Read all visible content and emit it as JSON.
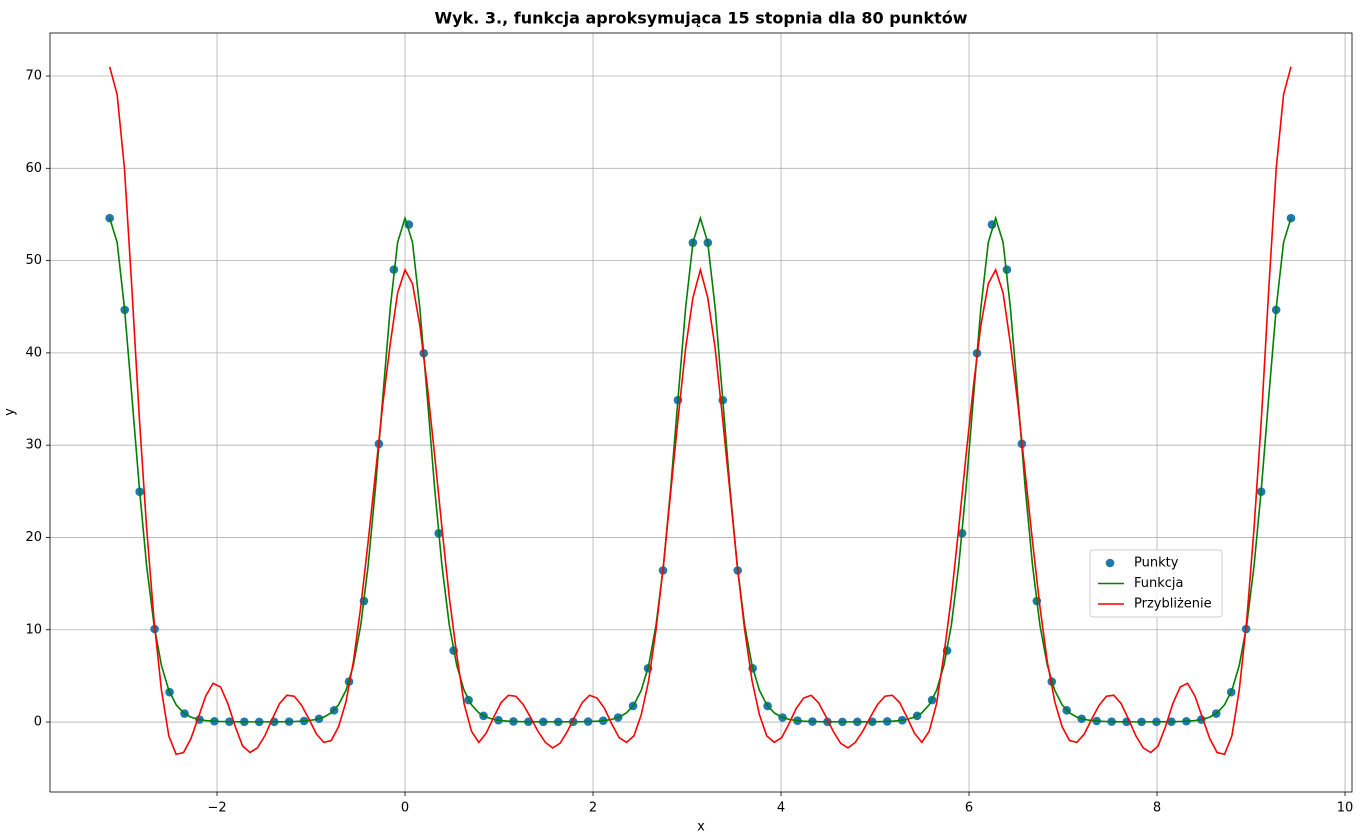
{
  "chart_data": {
    "type": "line",
    "title": "Wyk. 3., funkcja aproksymująca 15 stopnia dla 80 punktów",
    "x_label": "x",
    "y_label": "y",
    "xlim": [
      -3.777,
      10.074
    ],
    "ylim": [
      -7.58,
      74.66
    ],
    "xticks": [
      {
        "value": -2,
        "label": "−2"
      },
      0,
      2,
      4,
      6,
      8,
      10
    ],
    "yticks": [
      0,
      10,
      20,
      30,
      40,
      50,
      60,
      70
    ],
    "grid": true,
    "x": [
      -3.142,
      -3.063,
      -2.985,
      -2.906,
      -2.827,
      -2.749,
      -2.67,
      -2.592,
      -2.513,
      -2.435,
      -2.356,
      -2.278,
      -2.199,
      -2.121,
      -2.042,
      -1.963,
      -1.885,
      -1.806,
      -1.728,
      -1.649,
      -1.571,
      -1.492,
      -1.414,
      -1.335,
      -1.257,
      -1.178,
      -1.1,
      -1.021,
      -0.942,
      -0.864,
      -0.785,
      -0.707,
      -0.628,
      -0.55,
      -0.471,
      -0.393,
      -0.314,
      -0.236,
      -0.157,
      -0.079,
      0,
      0.079,
      0.157,
      0.236,
      0.314,
      0.393,
      0.471,
      0.55,
      0.628,
      0.707,
      0.785,
      0.864,
      0.942,
      1.021,
      1.1,
      1.178,
      1.257,
      1.335,
      1.414,
      1.492,
      1.571,
      1.649,
      1.728,
      1.806,
      1.885,
      1.963,
      2.042,
      2.121,
      2.199,
      2.278,
      2.356,
      2.435,
      2.513,
      2.592,
      2.67,
      2.749,
      2.827,
      2.906,
      2.985,
      3.063,
      3.142,
      3.22,
      3.299,
      3.377,
      3.456,
      3.534,
      3.613,
      3.691,
      3.77,
      3.848,
      3.927,
      4.006,
      4.084,
      4.163,
      4.241,
      4.32,
      4.398,
      4.477,
      4.555,
      4.634,
      4.712,
      4.791,
      4.869,
      4.948,
      5.027,
      5.105,
      5.184,
      5.262,
      5.341,
      5.419,
      5.498,
      5.576,
      5.655,
      5.733,
      5.812,
      5.89,
      5.969,
      6.048,
      6.126,
      6.205,
      6.283,
      6.362,
      6.44,
      6.519,
      6.597,
      6.676,
      6.754,
      6.833,
      6.912,
      6.99,
      7.069,
      7.147,
      7.226,
      7.304,
      7.383,
      7.461,
      7.54,
      7.618,
      7.697,
      7.775,
      7.854,
      7.933,
      8.011,
      8.09,
      8.168,
      8.247,
      8.325,
      8.404,
      8.482,
      8.561,
      8.639,
      8.718,
      8.796,
      8.875,
      8.954,
      9.032,
      9.111,
      9.189,
      9.268,
      9.346,
      9.425
    ],
    "series": [
      {
        "name": "Punkty",
        "type": "scatter",
        "color": "#1f77b4",
        "x": [
          -3.142,
          -2.982,
          -2.823,
          -2.664,
          -2.505,
          -2.346,
          -2.187,
          -2.028,
          -1.869,
          -1.71,
          -1.551,
          -1.392,
          -1.233,
          -1.074,
          -0.915,
          -0.755,
          -0.596,
          -0.437,
          -0.278,
          -0.119,
          0.04,
          0.199,
          0.358,
          0.517,
          0.676,
          0.835,
          0.994,
          1.153,
          1.312,
          1.471,
          1.63,
          1.789,
          1.948,
          2.108,
          2.267,
          2.426,
          2.585,
          2.744,
          2.903,
          3.062,
          3.221,
          3.38,
          3.539,
          3.698,
          3.857,
          4.016,
          4.175,
          4.334,
          4.494,
          4.653,
          4.812,
          4.971,
          5.13,
          5.289,
          5.448,
          5.607,
          5.766,
          5.926,
          6.085,
          6.244,
          6.403,
          6.562,
          6.721,
          6.88,
          7.039,
          7.198,
          7.358,
          7.517,
          7.676,
          7.835,
          7.994,
          8.153,
          8.312,
          8.471,
          8.63,
          8.789,
          8.948,
          9.108,
          9.267,
          9.425
        ],
        "values": [
          54.6,
          44.66,
          24.96,
          10.08,
          3.24,
          0.92,
          0.27,
          0.087,
          0.037,
          0.021,
          0.018,
          0.024,
          0.044,
          0.112,
          0.358,
          1.27,
          4.38,
          13.11,
          30.15,
          49.02,
          53.9,
          39.96,
          20.45,
          7.74,
          2.38,
          0.67,
          0.197,
          0.068,
          0.031,
          0.02,
          0.019,
          0.026,
          0.054,
          0.146,
          0.49,
          1.74,
          5.82,
          16.42,
          34.88,
          51.94,
          51.94,
          34.88,
          16.42,
          5.82,
          1.74,
          0.49,
          0.146,
          0.054,
          0.026,
          0.019,
          0.02,
          0.031,
          0.068,
          0.197,
          0.67,
          2.38,
          7.74,
          20.45,
          39.96,
          53.9,
          49.02,
          30.15,
          13.11,
          4.38,
          1.27,
          0.358,
          0.112,
          0.044,
          0.024,
          0.018,
          0.021,
          0.037,
          0.087,
          0.27,
          0.92,
          3.24,
          10.08,
          24.96,
          44.66,
          54.6
        ]
      },
      {
        "name": "Funkcja",
        "type": "line",
        "color": "#008000",
        "values": [
          54.6,
          51.98,
          44.88,
          35.3,
          25.44,
          16.92,
          10.5,
          6.15,
          3.44,
          1.87,
          1.0,
          0.535,
          0.291,
          0.163,
          0.095,
          0.059,
          0.039,
          0.028,
          0.022,
          0.019,
          0.018,
          0.019,
          0.022,
          0.028,
          0.039,
          0.059,
          0.095,
          0.163,
          0.291,
          0.535,
          1.0,
          1.87,
          3.44,
          6.15,
          10.5,
          16.92,
          25.44,
          35.3,
          44.88,
          51.98,
          54.6,
          51.98,
          44.88,
          35.3,
          25.44,
          16.92,
          10.5,
          6.15,
          3.44,
          1.87,
          1.0,
          0.535,
          0.291,
          0.163,
          0.095,
          0.059,
          0.039,
          0.028,
          0.022,
          0.019,
          0.018,
          0.019,
          0.022,
          0.028,
          0.039,
          0.059,
          0.095,
          0.163,
          0.291,
          0.535,
          1.0,
          1.87,
          3.44,
          6.15,
          10.5,
          16.92,
          25.44,
          35.3,
          44.88,
          51.98,
          54.6,
          51.98,
          44.88,
          35.3,
          25.44,
          16.92,
          10.5,
          6.15,
          3.44,
          1.87,
          1.0,
          0.535,
          0.291,
          0.163,
          0.095,
          0.059,
          0.039,
          0.028,
          0.022,
          0.019,
          0.018,
          0.019,
          0.022,
          0.028,
          0.039,
          0.059,
          0.095,
          0.163,
          0.291,
          0.535,
          1.0,
          1.87,
          3.44,
          6.15,
          10.5,
          16.92,
          25.44,
          35.3,
          44.88,
          51.98,
          54.6,
          51.98,
          44.88,
          35.3,
          25.44,
          16.92,
          10.5,
          6.15,
          3.44,
          1.87,
          1.0,
          0.535,
          0.291,
          0.163,
          0.095,
          0.059,
          0.039,
          0.028,
          0.022,
          0.019,
          0.018,
          0.019,
          0.022,
          0.028,
          0.039,
          0.059,
          0.095,
          0.163,
          0.291,
          0.535,
          1.0,
          1.87,
          3.44,
          6.15,
          10.5,
          16.92,
          25.44,
          35.3,
          44.88,
          51.98,
          54.6
        ]
      },
      {
        "name": "Przybliżenie",
        "type": "line",
        "color": "#ff0000",
        "values": [
          71.0,
          68.0,
          60.0,
          47.0,
          33.0,
          21.0,
          11.0,
          3.5,
          -1.5,
          -3.5,
          -3.3,
          -1.8,
          0.5,
          2.8,
          4.2,
          3.8,
          2.0,
          -0.5,
          -2.6,
          -3.3,
          -2.8,
          -1.5,
          0.3,
          2.0,
          2.9,
          2.8,
          1.8,
          0.3,
          -1.3,
          -2.2,
          -2.0,
          -0.5,
          2.2,
          6.5,
          12.5,
          19.5,
          27,
          34.5,
          41,
          46.5,
          49,
          47.5,
          43,
          36.5,
          29,
          21,
          13.5,
          7.3,
          2.0,
          -1.0,
          -2.2,
          -1.2,
          0.5,
          2.1,
          2.9,
          2.8,
          1.9,
          0.5,
          -1.0,
          -2.2,
          -2.8,
          -2.3,
          -1.0,
          0.6,
          2.1,
          2.9,
          2.6,
          1.5,
          -0.2,
          -1.7,
          -2.2,
          -1.5,
          0.8,
          4.5,
          10,
          17,
          25,
          33,
          40.5,
          46,
          49,
          46,
          40.5,
          33,
          25,
          17,
          10,
          4.5,
          0.8,
          -1.5,
          -2.2,
          -1.7,
          -0.2,
          1.5,
          2.6,
          2.9,
          2.1,
          0.6,
          -1.0,
          -2.3,
          -2.8,
          -2.2,
          -1.0,
          0.5,
          1.9,
          2.8,
          2.9,
          2.1,
          0.5,
          -1.2,
          -2.2,
          -1.0,
          2.0,
          7.3,
          13.5,
          21,
          29,
          36.5,
          43,
          47.5,
          49,
          46.5,
          41,
          34.5,
          27,
          19.5,
          12.5,
          6.5,
          2.2,
          -0.5,
          -2.0,
          -2.2,
          -1.3,
          0.3,
          1.8,
          2.8,
          2.9,
          2.0,
          0.3,
          -1.5,
          -2.8,
          -3.3,
          -2.6,
          -0.5,
          2.0,
          3.8,
          4.2,
          2.8,
          0.5,
          -1.8,
          -3.3,
          -3.5,
          -1.5,
          3.5,
          11.0,
          21.0,
          33.0,
          47.0,
          60.0,
          68.0,
          71.0
        ]
      }
    ]
  }
}
